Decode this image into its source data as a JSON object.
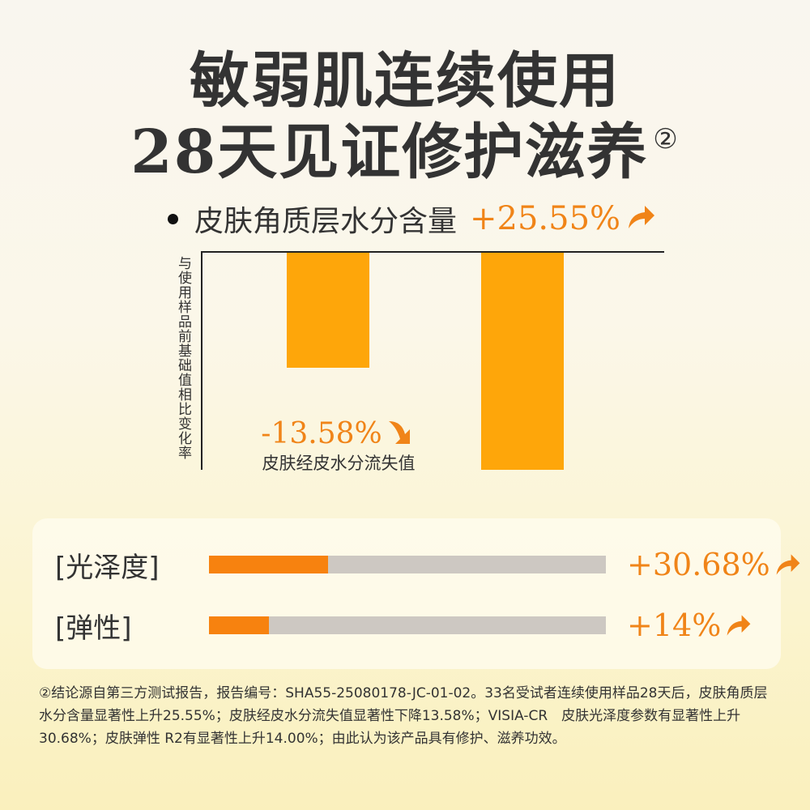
{
  "title": {
    "line1": "敏弱肌连续使用",
    "line2": "28天见证修护滋养",
    "note_mark": "②"
  },
  "highlight": {
    "label": "皮肤角质层水分含量",
    "value": "+25.55%",
    "trend": "up"
  },
  "chart_data": {
    "type": "bar",
    "ylabel": "与使用样品前基础值相比变化率",
    "categories": [
      "皮肤经皮水分流失值",
      "皮肤角质层水分含量"
    ],
    "values": [
      -13.58,
      25.55
    ],
    "value_labels": [
      "-13.58%",
      ""
    ],
    "bar_color": "#fea60a"
  },
  "progress": [
    {
      "label": "[光泽度]",
      "value_text": "+30.68%",
      "fill_fraction": 0.3,
      "trend": "up"
    },
    {
      "label": "[弹性]",
      "value_text": "+14%",
      "fill_fraction": 0.15,
      "trend": "up"
    }
  ],
  "colors": {
    "accent": "#f08418",
    "bar": "#fea60a",
    "track": "#cdc8c2"
  },
  "footnote": "②结论源自第三方测试报告，报告编号：SHA55-25080178-JC-01-02。33名受试者连续使用样品28天后，皮肤角质层水分含量显著性上升25.55%；皮肤经皮水分流失值显著性下降13.58%；VISIA-CR　皮肤光泽度参数有显著性上升30.68%；皮肤弹性 R2有显著性上升14.00%；由此认为该产品具有修护、滋养功效。"
}
